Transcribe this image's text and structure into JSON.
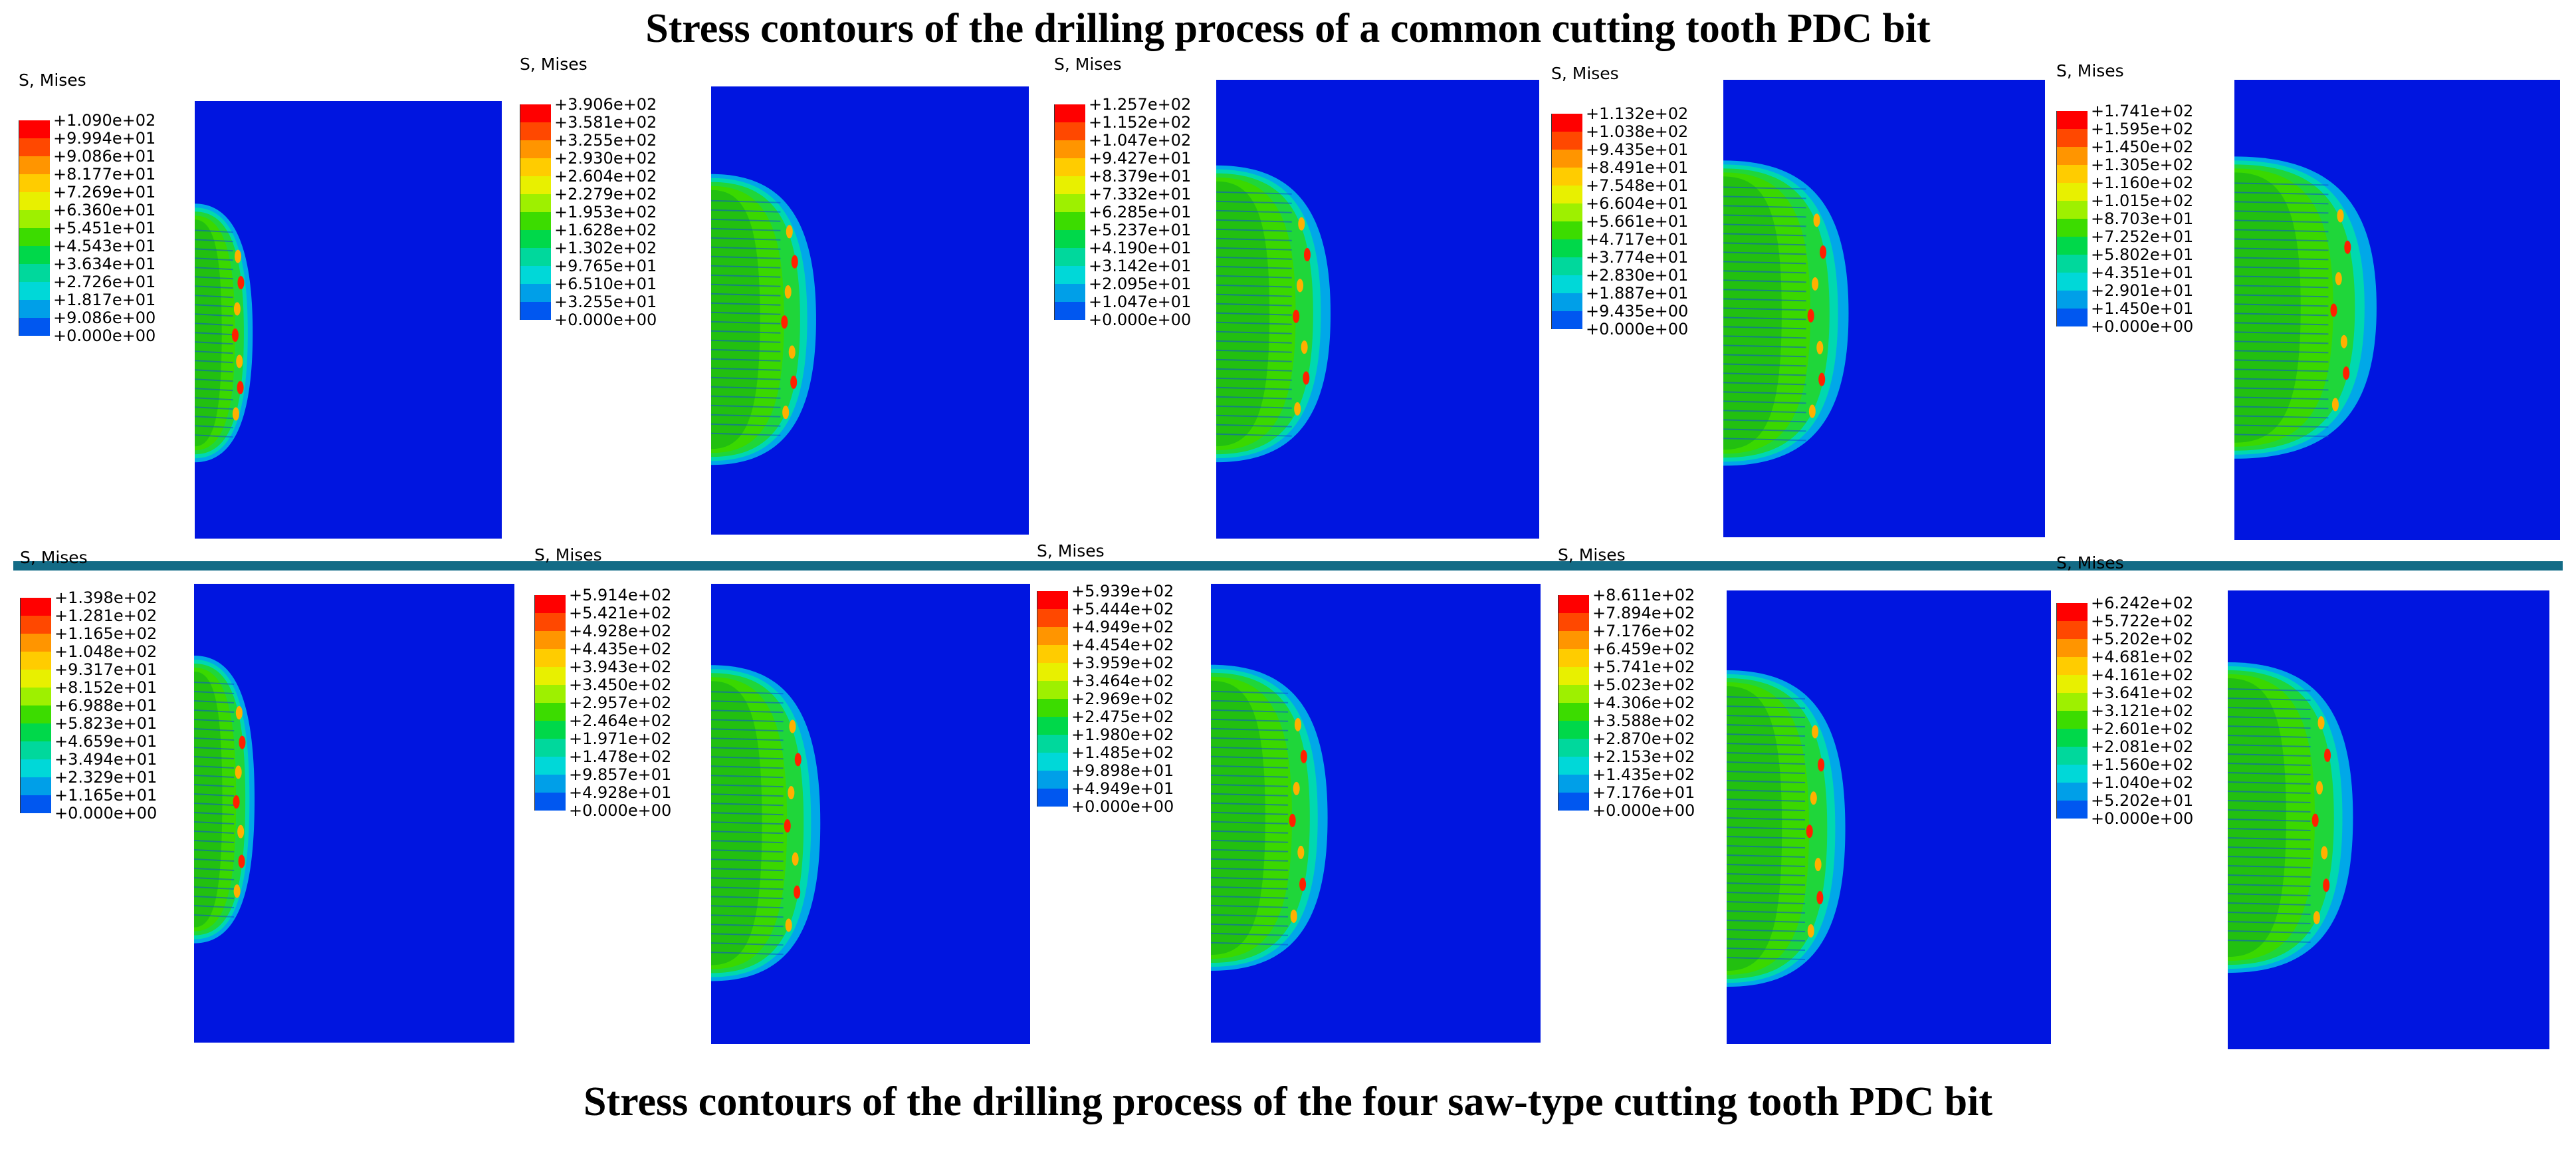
{
  "titles": {
    "top": "Stress contours of the drilling process of a common cutting tooth PDC bit",
    "bottom": "Stress contours of the drilling process of the four saw-type cutting tooth PDC bit"
  },
  "legend_colors": [
    "#ff0000",
    "#ff4800",
    "#ff9500",
    "#ffcc00",
    "#e8f000",
    "#9ef000",
    "#3cdc00",
    "#00d84a",
    "#00d89c",
    "#00d8d8",
    "#009fe8",
    "#0057f0",
    "#0015e0"
  ],
  "panels": [
    {
      "legend_title": "S, Mises",
      "values": [
        "+1.090e+02",
        "+9.994e+01",
        "+9.086e+01",
        "+8.177e+01",
        "+7.269e+01",
        "+6.360e+01",
        "+5.451e+01",
        "+4.543e+01",
        "+3.634e+01",
        "+2.726e+01",
        "+1.817e+01",
        "+9.086e+00",
        "+0.000e+00"
      ]
    },
    {
      "legend_title": "S, Mises",
      "values": [
        "+3.906e+02",
        "+3.581e+02",
        "+3.255e+02",
        "+2.930e+02",
        "+2.604e+02",
        "+2.279e+02",
        "+1.953e+02",
        "+1.628e+02",
        "+1.302e+02",
        "+9.765e+01",
        "+6.510e+01",
        "+3.255e+01",
        "+0.000e+00"
      ]
    },
    {
      "legend_title": "S, Mises",
      "values": [
        "+1.257e+02",
        "+1.152e+02",
        "+1.047e+02",
        "+9.427e+01",
        "+8.379e+01",
        "+7.332e+01",
        "+6.285e+01",
        "+5.237e+01",
        "+4.190e+01",
        "+3.142e+01",
        "+2.095e+01",
        "+1.047e+01",
        "+0.000e+00"
      ]
    },
    {
      "legend_title": "S, Mises",
      "values": [
        "+1.132e+02",
        "+1.038e+02",
        "+9.435e+01",
        "+8.491e+01",
        "+7.548e+01",
        "+6.604e+01",
        "+5.661e+01",
        "+4.717e+01",
        "+3.774e+01",
        "+2.830e+01",
        "+1.887e+01",
        "+9.435e+00",
        "+0.000e+00"
      ]
    },
    {
      "legend_title": "S, Mises",
      "values": [
        "+1.741e+02",
        "+1.595e+02",
        "+1.450e+02",
        "+1.305e+02",
        "+1.160e+02",
        "+1.015e+02",
        "+8.703e+01",
        "+7.252e+01",
        "+5.802e+01",
        "+4.351e+01",
        "+2.901e+01",
        "+1.450e+01",
        "+0.000e+00"
      ]
    },
    {
      "legend_title": "S, Mises",
      "values": [
        "+1.398e+02",
        "+1.281e+02",
        "+1.165e+02",
        "+1.048e+02",
        "+9.317e+01",
        "+8.152e+01",
        "+6.988e+01",
        "+5.823e+01",
        "+4.659e+01",
        "+3.494e+01",
        "+2.329e+01",
        "+1.165e+01",
        "+0.000e+00"
      ]
    },
    {
      "legend_title": "S, Mises",
      "values": [
        "+5.914e+02",
        "+5.421e+02",
        "+4.928e+02",
        "+4.435e+02",
        "+3.943e+02",
        "+3.450e+02",
        "+2.957e+02",
        "+2.464e+02",
        "+1.971e+02",
        "+1.478e+02",
        "+9.857e+01",
        "+4.928e+01",
        "+0.000e+00"
      ]
    },
    {
      "legend_title": "S, Mises",
      "values": [
        "+5.939e+02",
        "+5.444e+02",
        "+4.949e+02",
        "+4.454e+02",
        "+3.959e+02",
        "+3.464e+02",
        "+2.969e+02",
        "+2.475e+02",
        "+1.980e+02",
        "+1.485e+02",
        "+9.898e+01",
        "+4.949e+01",
        "+0.000e+00"
      ]
    },
    {
      "legend_title": "S, Mises",
      "values": [
        "+8.611e+02",
        "+7.894e+02",
        "+7.176e+02",
        "+6.459e+02",
        "+5.741e+02",
        "+5.023e+02",
        "+4.306e+02",
        "+3.588e+02",
        "+2.870e+02",
        "+2.153e+02",
        "+1.435e+02",
        "+7.176e+01",
        "+0.000e+00"
      ]
    },
    {
      "legend_title": "S, Mises",
      "values": [
        "+6.242e+02",
        "+5.722e+02",
        "+5.202e+02",
        "+4.681e+02",
        "+4.161e+02",
        "+3.641e+02",
        "+3.121e+02",
        "+2.601e+02",
        "+2.081e+02",
        "+1.560e+02",
        "+1.040e+02",
        "+5.202e+01",
        "+0.000e+00"
      ]
    }
  ]
}
